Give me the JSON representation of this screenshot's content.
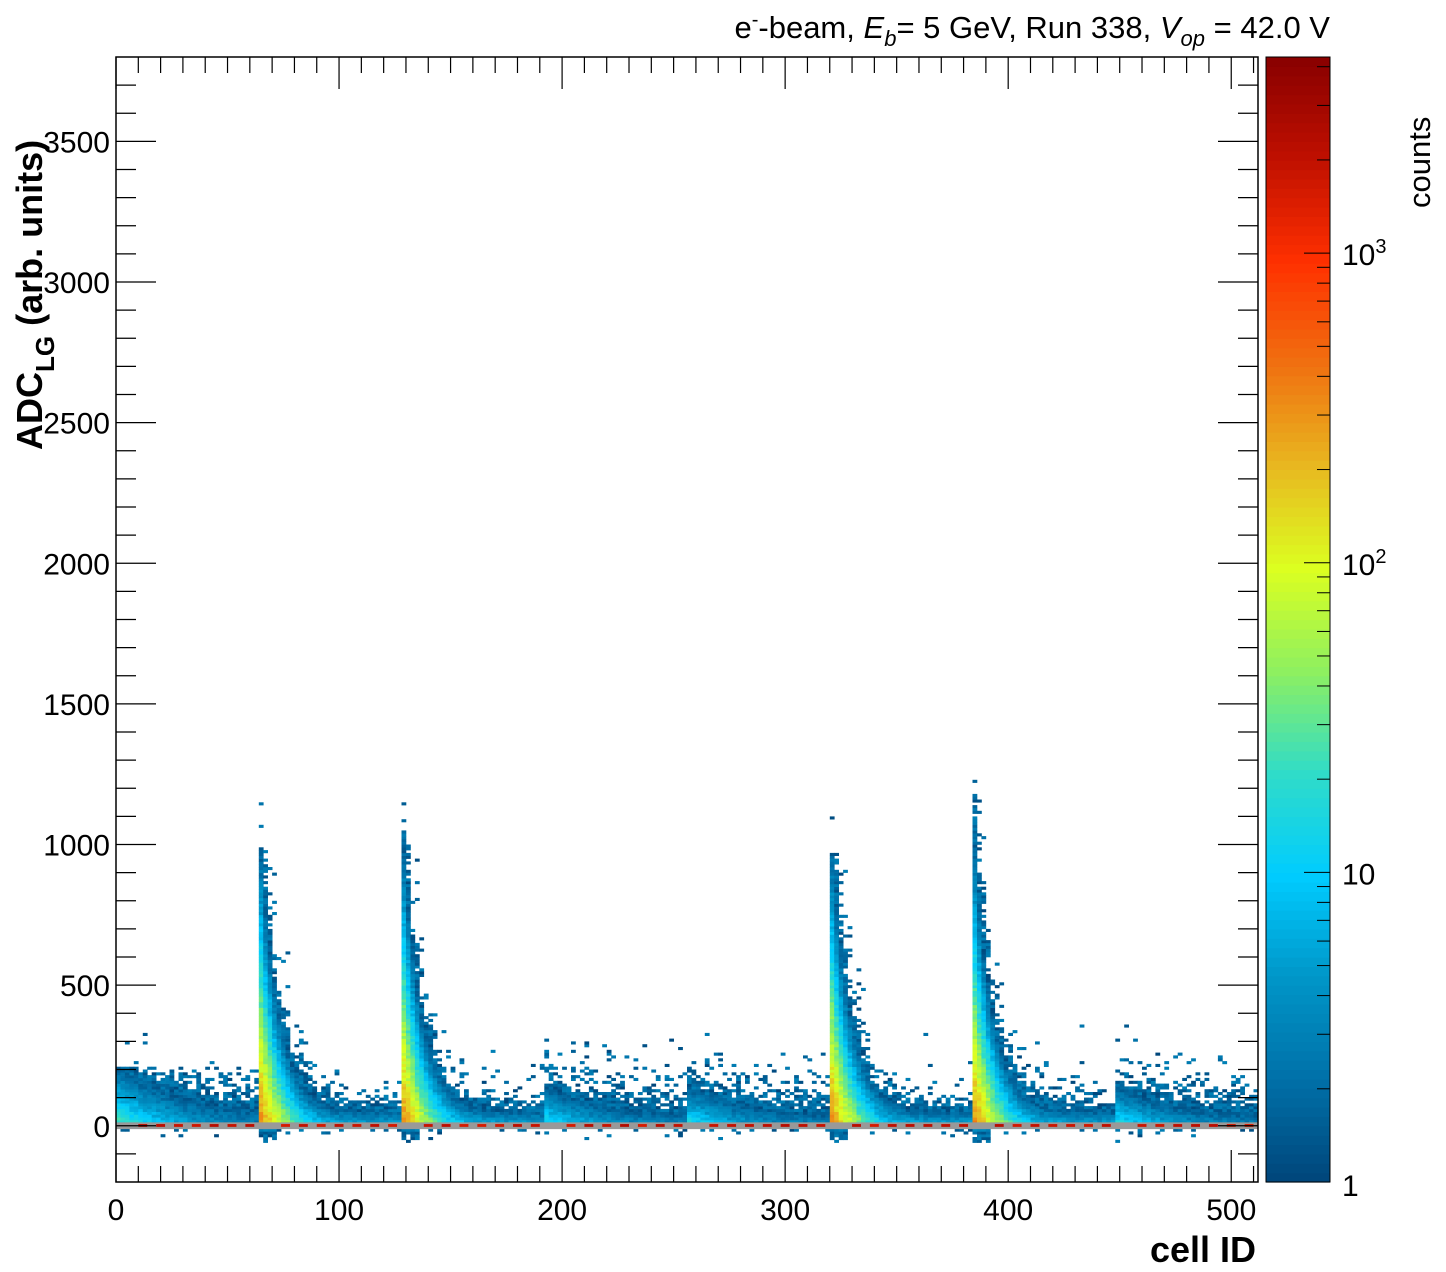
{
  "chart_data": {
    "type": "heatmap",
    "title": "e⁻-beam, E_b= 5 GeV, Run 338, V_op = 42.0 V",
    "title_parts": {
      "e": "e",
      "sup_minus": "-",
      "beam": "-beam, ",
      "E": "E",
      "b": "b",
      "eb_val": "= 5 GeV, Run 338, ",
      "V": "V",
      "op": "op",
      "vop_val": " = 42.0 V"
    },
    "xlabel": "cell ID",
    "ylabel_main": "ADC",
    "ylabel_sub": "LG",
    "ylabel_tail": " (arb. units)",
    "zlabel": "counts",
    "xlim": [
      0,
      512
    ],
    "ylim": [
      -200,
      3800
    ],
    "zlim": [
      1,
      4300
    ],
    "zscale": "log",
    "xticks": [
      "0",
      "100",
      "200",
      "300",
      "400",
      "500"
    ],
    "xtick_values": [
      0,
      100,
      200,
      300,
      400,
      500
    ],
    "yticks": [
      "0",
      "500",
      "1000",
      "1500",
      "2000",
      "2500",
      "3000",
      "3500"
    ],
    "ytick_values": [
      0,
      500,
      1000,
      1500,
      2000,
      2500,
      3000,
      3500
    ],
    "zticks": [
      {
        "label": "1",
        "value": 1
      },
      {
        "label": "10",
        "value": 10
      },
      {
        "label": "10",
        "sup": "2",
        "value": 100
      },
      {
        "label": "10",
        "sup": "3",
        "value": 1000
      }
    ],
    "module_size": 64,
    "modules": [
      {
        "start": 0,
        "type": "weak",
        "peak_adc": 200
      },
      {
        "start": 64,
        "type": "strong",
        "peak_adc": 980
      },
      {
        "start": 128,
        "type": "strong",
        "peak_adc": 1040
      },
      {
        "start": 192,
        "type": "weak",
        "peak_adc": 300
      },
      {
        "start": 256,
        "type": "weak",
        "peak_adc": 250
      },
      {
        "start": 320,
        "type": "strong",
        "peak_adc": 960
      },
      {
        "start": 384,
        "type": "strong",
        "peak_adc": 1150
      },
      {
        "start": 448,
        "type": "weak",
        "peak_adc": 300
      }
    ],
    "pedestal_adc": 0,
    "pedestal_counts": 2500,
    "colors": [
      "#00457a",
      "#0070a8",
      "#0096c8",
      "#00ccff",
      "#30dcc8",
      "#8ef060",
      "#dcff20",
      "#e8b820",
      "#f07010",
      "#ff3000",
      "#c01000",
      "#880000"
    ]
  }
}
